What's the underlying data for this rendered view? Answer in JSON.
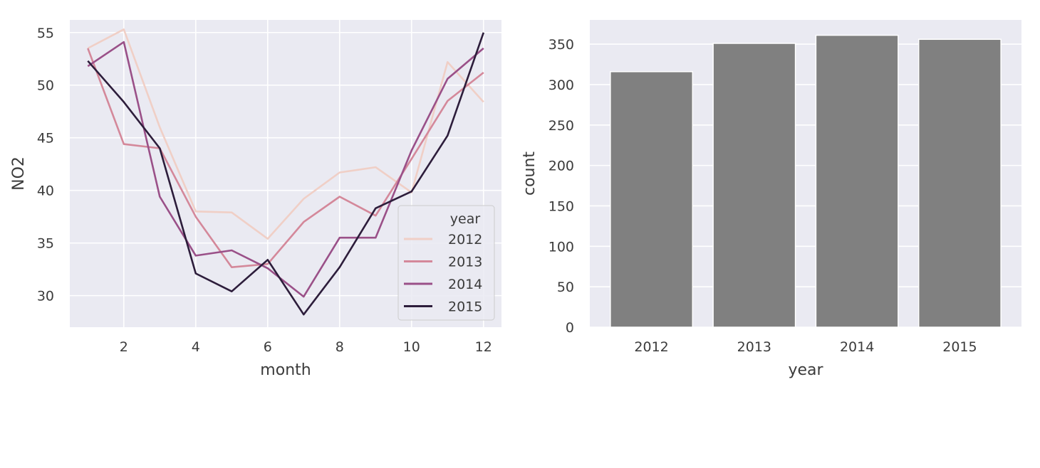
{
  "chart_data": [
    {
      "type": "line",
      "title": "",
      "xlabel": "month",
      "ylabel": "NO2",
      "xlim": [
        0.5,
        12.5
      ],
      "ylim": [
        27.0,
        56.2
      ],
      "xticks": [
        2,
        4,
        6,
        8,
        10,
        12
      ],
      "yticks": [
        30,
        35,
        40,
        45,
        50,
        55
      ],
      "grid": true,
      "background": "#eaeaf2",
      "grid_color": "#ffffff",
      "x": [
        1,
        2,
        3,
        4,
        5,
        6,
        7,
        8,
        9,
        10,
        11,
        12
      ],
      "legend": {
        "title": "year",
        "placement": "lower-right"
      },
      "series": [
        {
          "name": "2012",
          "color": "#f0cfc6",
          "values": [
            53.5,
            55.3,
            46.0,
            38.0,
            37.9,
            35.4,
            39.2,
            41.7,
            42.2,
            39.8,
            52.2,
            48.4
          ]
        },
        {
          "name": "2013",
          "color": "#d4889a",
          "values": [
            53.5,
            44.4,
            44.0,
            37.5,
            32.7,
            33.0,
            37.0,
            39.4,
            37.6,
            43.0,
            48.5,
            51.2
          ]
        },
        {
          "name": "2014",
          "color": "#9a5088",
          "values": [
            51.8,
            54.1,
            39.4,
            33.8,
            34.3,
            32.6,
            29.9,
            35.5,
            35.5,
            43.8,
            50.6,
            53.5
          ]
        },
        {
          "name": "2015",
          "color": "#2d1d3b",
          "values": [
            52.3,
            48.4,
            44.0,
            32.1,
            30.4,
            33.4,
            28.2,
            32.7,
            38.3,
            39.9,
            45.2,
            55.0
          ]
        }
      ]
    },
    {
      "type": "bar",
      "title": "",
      "xlabel": "year",
      "ylabel": "count",
      "categories": [
        "2012",
        "2013",
        "2014",
        "2015"
      ],
      "values": [
        316,
        351,
        361,
        356
      ],
      "ylim": [
        0,
        380
      ],
      "yticks": [
        0,
        50,
        100,
        150,
        200,
        250,
        300,
        350
      ],
      "grid": true,
      "bar_color": "#808080",
      "background": "#eaeaf2",
      "grid_color": "#ffffff"
    }
  ]
}
